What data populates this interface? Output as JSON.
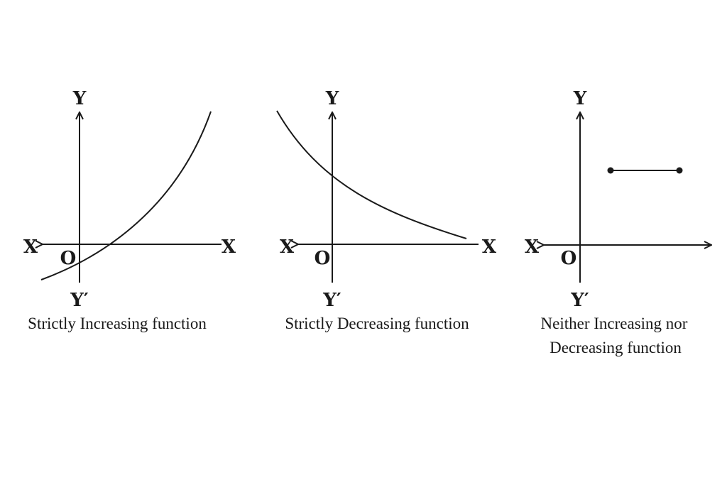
{
  "axis_labels": {
    "x_right": "X",
    "x_left": "X",
    "y_top": "Y",
    "y_bottom": "Y′",
    "origin": "O"
  },
  "panels": [
    {
      "caption_line1": "Strictly Increasing function",
      "caption_line2": ""
    },
    {
      "caption_line1": "Strictly Decreasing function",
      "caption_line2": ""
    },
    {
      "caption_line1": "Neither Increasing nor",
      "caption_line2": "Decreasing function"
    }
  ]
}
